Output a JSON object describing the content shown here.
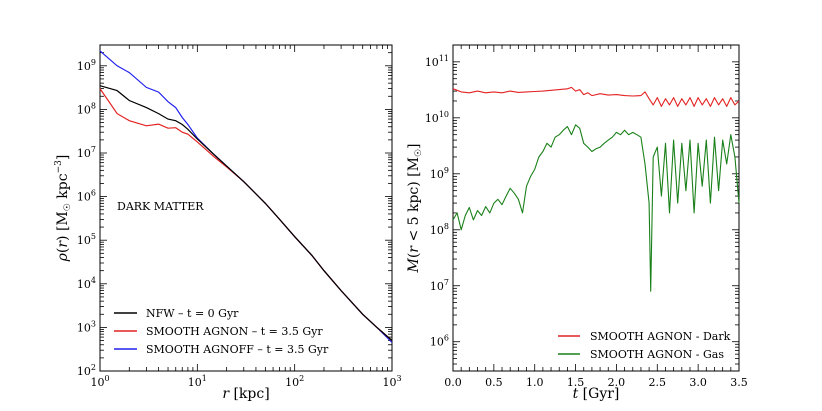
{
  "chart_data": [
    {
      "type": "line",
      "xscale": "log",
      "yscale": "log",
      "xlabel": "r [kpc]",
      "ylabel": "ρ(r) [M☉ kpc⁻³]",
      "xlim": [
        1,
        1000
      ],
      "ylim": [
        100,
        3000000000
      ],
      "x_ticks": [
        {
          "value": 1,
          "base": "10",
          "exp": "0"
        },
        {
          "value": 10,
          "base": "10",
          "exp": "1"
        },
        {
          "value": 100,
          "base": "10",
          "exp": "2"
        },
        {
          "value": 1000,
          "base": "10",
          "exp": "3"
        }
      ],
      "y_ticks": [
        {
          "value": 100,
          "base": "10",
          "exp": "2"
        },
        {
          "value": 1000,
          "base": "10",
          "exp": "3"
        },
        {
          "value": 10000,
          "base": "10",
          "exp": "4"
        },
        {
          "value": 100000,
          "base": "10",
          "exp": "5"
        },
        {
          "value": 1000000,
          "base": "10",
          "exp": "6"
        },
        {
          "value": 10000000,
          "base": "10",
          "exp": "7"
        },
        {
          "value": 100000000,
          "base": "10",
          "exp": "8"
        },
        {
          "value": 1000000000,
          "base": "10",
          "exp": "9"
        }
      ],
      "annotation": "DARK MATTER",
      "legend_position": "lower-left",
      "series": [
        {
          "name": "NFW – t = 0 Gyr",
          "color": "#000000",
          "x": [
            1,
            1.5,
            2,
            3,
            4,
            5,
            6,
            7,
            8,
            10,
            15,
            20,
            30,
            50,
            70,
            100,
            150,
            200,
            300,
            500,
            700,
            1000
          ],
          "y": [
            350000000,
            270000000,
            160000000,
            110000000,
            80000000,
            60000000,
            55000000,
            45000000,
            35000000,
            21000000,
            9000000,
            5000000,
            2200000,
            700000,
            300000,
            120000,
            45000,
            20000,
            7000,
            2000,
            1000,
            500
          ]
        },
        {
          "name": "SMOOTH AGNON – t = 3.5 Gyr",
          "color": "#e32222",
          "x": [
            1,
            1.5,
            2,
            3,
            4,
            5,
            6,
            7,
            8,
            10,
            15,
            20,
            30,
            50,
            70,
            100,
            150,
            200,
            300,
            500,
            700,
            1000
          ],
          "y": [
            300000000,
            80000000,
            55000000,
            42000000,
            46000000,
            37000000,
            38000000,
            30000000,
            27000000,
            18000000,
            8000000,
            4800000,
            2200000,
            700000,
            300000,
            120000,
            45000,
            20000,
            7000,
            2000,
            1000,
            500
          ]
        },
        {
          "name": "SMOOTH AGNOFF – t = 3.5 Gyr",
          "color": "#2222ee",
          "x": [
            1,
            1.5,
            2,
            3,
            4,
            5,
            6,
            7,
            8,
            10,
            15,
            20,
            30,
            50,
            70,
            100,
            150,
            200,
            300,
            500,
            700,
            1000
          ],
          "y": [
            2200000000,
            1000000000,
            700000000,
            320000000,
            250000000,
            150000000,
            110000000,
            65000000,
            45000000,
            22000000,
            9000000,
            5000000,
            2200000,
            700000,
            300000,
            120000,
            45000,
            20000,
            7000,
            2000,
            1000,
            450
          ]
        }
      ]
    },
    {
      "type": "line",
      "xscale": "linear",
      "yscale": "log",
      "xlabel": "t [Gyr]",
      "ylabel": "M(r < 5 kpc) [M☉]",
      "xlim": [
        0,
        3.5
      ],
      "ylim": [
        300000,
        200000000000
      ],
      "x_ticks": [
        {
          "value": 0,
          "label": "0.0"
        },
        {
          "value": 0.5,
          "label": "0.5"
        },
        {
          "value": 1,
          "label": "1.0"
        },
        {
          "value": 1.5,
          "label": "1.5"
        },
        {
          "value": 2,
          "label": "2.0"
        },
        {
          "value": 2.5,
          "label": "2.5"
        },
        {
          "value": 3,
          "label": "3.0"
        },
        {
          "value": 3.5,
          "label": "3.5"
        }
      ],
      "y_ticks": [
        {
          "value": 1000000,
          "base": "10",
          "exp": "6"
        },
        {
          "value": 10000000,
          "base": "10",
          "exp": "7"
        },
        {
          "value": 100000000,
          "base": "10",
          "exp": "8"
        },
        {
          "value": 1000000000,
          "base": "10",
          "exp": "9"
        },
        {
          "value": 10000000000,
          "base": "10",
          "exp": "10"
        },
        {
          "value": 100000000000,
          "base": "10",
          "exp": "11"
        }
      ],
      "legend_position": "lower-right",
      "series": [
        {
          "name": "SMOOTH AGNON - Dark",
          "color": "#e32222",
          "x": [
            0,
            0.05,
            0.1,
            0.2,
            0.3,
            0.4,
            0.5,
            0.6,
            0.7,
            0.8,
            0.9,
            1.0,
            1.1,
            1.2,
            1.3,
            1.4,
            1.45,
            1.5,
            1.55,
            1.6,
            1.65,
            1.7,
            1.8,
            1.9,
            2.0,
            2.1,
            2.2,
            2.3,
            2.35,
            2.4,
            2.45,
            2.5,
            2.55,
            2.6,
            2.65,
            2.7,
            2.75,
            2.8,
            2.85,
            2.9,
            2.95,
            3.0,
            3.05,
            3.1,
            3.15,
            3.2,
            3.25,
            3.3,
            3.35,
            3.4,
            3.45,
            3.5
          ],
          "y": [
            33000000000,
            31000000000,
            29000000000,
            28000000000,
            30000000000,
            28000000000,
            29000000000,
            28000000000,
            30000000000,
            28500000000,
            29000000000,
            29500000000,
            30000000000,
            31000000000,
            32000000000,
            33000000000,
            35000000000,
            30000000000,
            32000000000,
            26000000000,
            28000000000,
            25000000000,
            27000000000,
            25500000000,
            26000000000,
            25000000000,
            24500000000,
            25000000000,
            29000000000,
            22000000000,
            17000000000,
            23000000000,
            16000000000,
            22000000000,
            17000000000,
            23000000000,
            16000000000,
            22000000000,
            17000000000,
            23000000000,
            16000000000,
            23000000000,
            17000000000,
            22000000000,
            16000000000,
            23000000000,
            17000000000,
            22000000000,
            16000000000,
            23000000000,
            17000000000,
            20000000000
          ]
        },
        {
          "name": "SMOOTH AGNON - Gas",
          "color": "#1a801a",
          "x": [
            0,
            0.05,
            0.1,
            0.15,
            0.2,
            0.25,
            0.3,
            0.35,
            0.4,
            0.45,
            0.5,
            0.55,
            0.6,
            0.65,
            0.7,
            0.75,
            0.8,
            0.85,
            0.9,
            0.95,
            1.0,
            1.05,
            1.1,
            1.15,
            1.2,
            1.25,
            1.3,
            1.35,
            1.4,
            1.45,
            1.5,
            1.55,
            1.6,
            1.65,
            1.7,
            1.75,
            1.8,
            1.85,
            1.9,
            1.95,
            2.0,
            2.05,
            2.1,
            2.15,
            2.2,
            2.25,
            2.3,
            2.35,
            2.4,
            2.42,
            2.45,
            2.5,
            2.55,
            2.6,
            2.65,
            2.7,
            2.75,
            2.8,
            2.85,
            2.9,
            2.95,
            3.0,
            3.05,
            3.1,
            3.15,
            3.2,
            3.25,
            3.3,
            3.35,
            3.4,
            3.45,
            3.5
          ],
          "y": [
            150000000,
            200000000,
            100000000,
            180000000,
            250000000,
            150000000,
            220000000,
            180000000,
            260000000,
            200000000,
            300000000,
            350000000,
            280000000,
            400000000,
            550000000,
            450000000,
            350000000,
            200000000,
            600000000,
            900000000,
            1200000000,
            2000000000,
            2500000000,
            3500000000,
            3000000000,
            4500000000,
            5000000000,
            6000000000,
            7000000000,
            5000000000,
            7500000000,
            6500000000,
            3500000000,
            3000000000,
            2500000000,
            2800000000,
            3000000000,
            3500000000,
            4000000000,
            4500000000,
            5500000000,
            5000000000,
            6000000000,
            5000000000,
            5500000000,
            5000000000,
            4500000000,
            1500000000,
            300000000,
            8000000,
            2000000000,
            3000000000,
            400000000,
            3500000000,
            200000000,
            4000000000,
            300000000,
            3500000000,
            500000000,
            4000000000,
            200000000,
            3500000000,
            600000000,
            4000000000,
            300000000,
            4500000000,
            500000000,
            4000000000,
            1500000000,
            5000000000,
            2000000000,
            300000000
          ]
        }
      ]
    }
  ]
}
